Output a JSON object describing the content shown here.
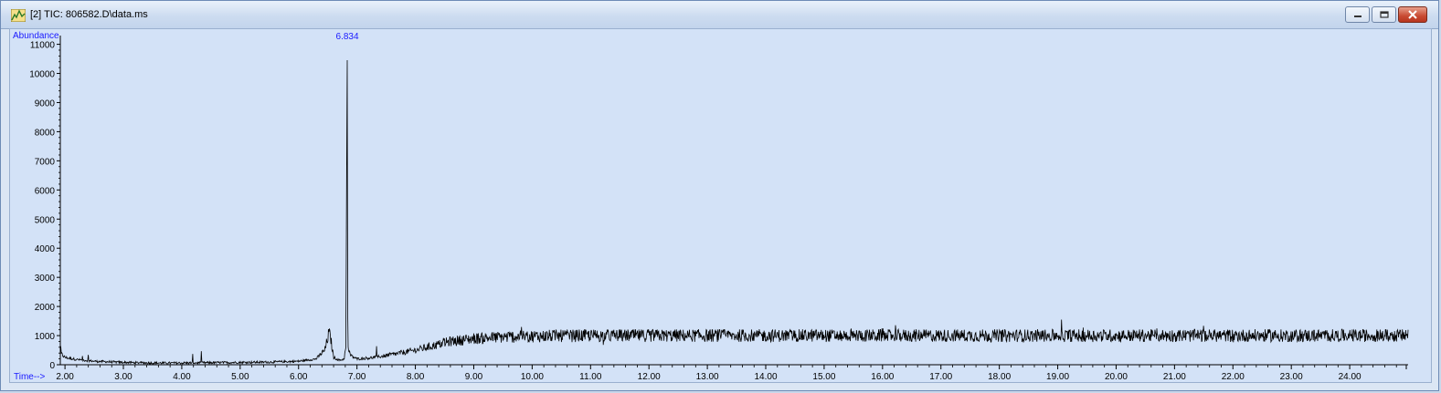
{
  "window": {
    "title": "[2] TIC: 806582.D\\data.ms",
    "icon": "chromatogram-app-icon",
    "controls": [
      "minimize-icon",
      "maximize-icon",
      "close-icon"
    ]
  },
  "colors": {
    "plot_bg": "#d3e2f7",
    "trace": "#000000",
    "label_blue": "#1a1aff",
    "close_red": "#c84a32"
  },
  "chart_data": {
    "type": "line",
    "ylabel": "Abundance",
    "xlabel": "Time-->",
    "xlim": [
      1.92,
      25.0
    ],
    "ylim": [
      0,
      11300
    ],
    "y_ticks": [
      0,
      1000,
      2000,
      3000,
      4000,
      5000,
      6000,
      7000,
      8000,
      9000,
      10000,
      11000
    ],
    "x_ticks": [
      2.0,
      3.0,
      4.0,
      5.0,
      6.0,
      7.0,
      8.0,
      9.0,
      10.0,
      11.0,
      12.0,
      13.0,
      14.0,
      15.0,
      16.0,
      17.0,
      18.0,
      19.0,
      20.0,
      21.0,
      22.0,
      23.0,
      24.0
    ],
    "x_tick_labels": [
      "2.00",
      "3.00",
      "4.00",
      "5.00",
      "6.00",
      "7.00",
      "8.00",
      "9.00",
      "10.00",
      "11.00",
      "12.00",
      "13.00",
      "14.00",
      "15.00",
      "16.00",
      "17.00",
      "18.00",
      "19.00",
      "20.00",
      "21.00",
      "22.00",
      "23.00",
      "24.00"
    ],
    "peak_label": "6.834",
    "series": [
      {
        "x": [
          1.92,
          2.0,
          2.2,
          2.5,
          3.0,
          3.5,
          4.0,
          4.5,
          5.0,
          5.5,
          6.0,
          6.3,
          6.45,
          6.52,
          6.55,
          6.6,
          6.7,
          6.78,
          6.81,
          6.834,
          6.84,
          6.85,
          6.9,
          7.0,
          7.3,
          7.6,
          8.0,
          8.3,
          8.6,
          9.0,
          9.5,
          10.0,
          11.0,
          12.0,
          13.0,
          14.0,
          15.0,
          16.0,
          17.0,
          18.0,
          19.0,
          20.0,
          21.0,
          22.0,
          23.0,
          24.0,
          25.0
        ],
        "y": [
          400,
          250,
          180,
          120,
          80,
          60,
          60,
          70,
          80,
          90,
          120,
          200,
          500,
          1100,
          900,
          250,
          150,
          200,
          600,
          11000,
          2000,
          500,
          300,
          200,
          250,
          350,
          500,
          650,
          800,
          900,
          950,
          980,
          1000,
          1000,
          1000,
          1000,
          1000,
          1000,
          1000,
          1000,
          1000,
          1000,
          1000,
          1000,
          1000,
          1000,
          1000
        ]
      }
    ],
    "grid": false,
    "legend": "none"
  }
}
